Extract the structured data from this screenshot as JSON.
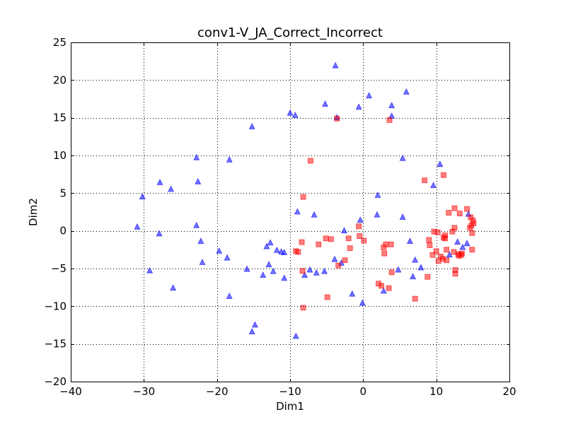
{
  "chart_data": {
    "type": "scatter",
    "title": "conv1-V_JA_Correct_Incorrect",
    "xlabel": "Dim1",
    "ylabel": "Dim2",
    "xlim": [
      -40,
      20
    ],
    "ylim": [
      -20,
      25
    ],
    "xticks": [
      -40,
      -30,
      -20,
      -10,
      0,
      10,
      20
    ],
    "yticks": [
      -20,
      -15,
      -10,
      -5,
      0,
      5,
      10,
      15,
      20,
      25
    ],
    "xtick_labels": [
      "−40",
      "−30",
      "−20",
      "−10",
      "0",
      "10",
      "20"
    ],
    "ytick_labels": [
      "−20",
      "−15",
      "−10",
      "−5",
      "0",
      "5",
      "10",
      "15",
      "20",
      "25"
    ],
    "grid": true,
    "series": [
      {
        "marker": "triangle",
        "color": "#0000ff",
        "points": [
          [
            -3.8,
            21.9
          ],
          [
            5.9,
            18.4
          ],
          [
            0.8,
            17.9
          ],
          [
            -5.2,
            16.8
          ],
          [
            3.9,
            16.6
          ],
          [
            -0.6,
            16.4
          ],
          [
            -10.0,
            15.6
          ],
          [
            -9.3,
            15.3
          ],
          [
            3.9,
            15.2
          ],
          [
            -3.6,
            15.0
          ],
          [
            -15.2,
            13.8
          ],
          [
            10.5,
            8.8
          ],
          [
            -22.8,
            9.7
          ],
          [
            -18.3,
            9.4
          ],
          [
            5.4,
            9.6
          ],
          [
            -27.8,
            6.4
          ],
          [
            -22.6,
            6.5
          ],
          [
            -26.3,
            5.5
          ],
          [
            -30.2,
            4.5
          ],
          [
            9.6,
            6.0
          ],
          [
            2.0,
            4.7
          ],
          [
            -9.0,
            2.5
          ],
          [
            -6.7,
            2.1
          ],
          [
            1.9,
            2.1
          ],
          [
            5.4,
            1.8
          ],
          [
            -0.4,
            1.4
          ],
          [
            -30.9,
            0.5
          ],
          [
            -22.8,
            0.7
          ],
          [
            -27.9,
            -0.4
          ],
          [
            -2.6,
            0.0
          ],
          [
            -22.2,
            -1.4
          ],
          [
            -12.7,
            -1.6
          ],
          [
            -13.2,
            -2.1
          ],
          [
            6.4,
            -1.4
          ],
          [
            -19.7,
            -2.7
          ],
          [
            -11.8,
            -2.6
          ],
          [
            -11.2,
            -2.8
          ],
          [
            -10.8,
            -2.9
          ],
          [
            -18.6,
            -3.6
          ],
          [
            -22.0,
            -4.2
          ],
          [
            -3.9,
            -3.8
          ],
          [
            -12.9,
            -4.5
          ],
          [
            -3.0,
            -4.3
          ],
          [
            7.1,
            -3.9
          ],
          [
            -15.9,
            -5.1
          ],
          [
            -12.3,
            -5.4
          ],
          [
            -29.2,
            -5.3
          ],
          [
            -7.3,
            -5.2
          ],
          [
            -6.4,
            -5.6
          ],
          [
            -5.3,
            -5.4
          ],
          [
            4.8,
            -5.2
          ],
          [
            7.9,
            -4.9
          ],
          [
            -13.7,
            -5.9
          ],
          [
            -8.0,
            -5.9
          ],
          [
            -10.8,
            -6.3
          ],
          [
            6.8,
            -6.1
          ],
          [
            -26.0,
            -7.6
          ],
          [
            -18.3,
            -8.7
          ],
          [
            2.8,
            -8.0
          ],
          [
            -1.5,
            -8.4
          ],
          [
            -0.1,
            -9.6
          ],
          [
            -14.8,
            -12.5
          ],
          [
            -15.2,
            -13.4
          ],
          [
            -9.2,
            -14.0
          ],
          [
            11.8,
            -3.2
          ],
          [
            14.2,
            -1.7
          ],
          [
            14.4,
            2.2
          ],
          [
            12.9,
            -1.5
          ],
          [
            13.6,
            -2.2
          ]
        ]
      },
      {
        "marker": "square",
        "color": "#ff0000",
        "points": [
          [
            -3.6,
            14.9
          ],
          [
            3.6,
            14.7
          ],
          [
            -7.2,
            9.3
          ],
          [
            11.0,
            7.4
          ],
          [
            8.4,
            6.7
          ],
          [
            -8.2,
            4.5
          ],
          [
            12.5,
            3.0
          ],
          [
            14.2,
            2.9
          ],
          [
            11.7,
            2.4
          ],
          [
            13.2,
            2.3
          ],
          [
            14.7,
            1.8
          ],
          [
            15.0,
            1.4
          ],
          [
            14.8,
            0.7
          ],
          [
            15.1,
            1.0
          ],
          [
            14.6,
            0.4
          ],
          [
            12.5,
            0.4
          ],
          [
            12.2,
            -0.1
          ],
          [
            -0.6,
            0.6
          ],
          [
            10.2,
            -0.2
          ],
          [
            9.7,
            -0.1
          ],
          [
            11.2,
            -0.6
          ],
          [
            11.0,
            -0.9
          ],
          [
            14.9,
            -0.3
          ],
          [
            -8.4,
            -1.5
          ],
          [
            -4.4,
            -1.1
          ],
          [
            -5.1,
            -1.0
          ],
          [
            -2.0,
            -1.0
          ],
          [
            -0.5,
            -0.7
          ],
          [
            0.1,
            -1.3
          ],
          [
            -6.1,
            -1.8
          ],
          [
            3.1,
            -1.8
          ],
          [
            3.8,
            -1.8
          ],
          [
            9.0,
            -1.2
          ],
          [
            9.1,
            -1.9
          ],
          [
            -8.9,
            -2.8
          ],
          [
            -1.8,
            -2.3
          ],
          [
            2.8,
            -2.2
          ],
          [
            -9.2,
            -2.7
          ],
          [
            9.5,
            -3.2
          ],
          [
            10.0,
            -2.7
          ],
          [
            11.4,
            -2.5
          ],
          [
            12.4,
            -2.8
          ],
          [
            13.0,
            -3.1
          ],
          [
            13.4,
            -3.2
          ],
          [
            14.9,
            -2.5
          ],
          [
            10.3,
            -4.0
          ],
          [
            10.9,
            -3.7
          ],
          [
            11.4,
            -3.9
          ],
          [
            2.9,
            -3.0
          ],
          [
            -2.5,
            -3.9
          ],
          [
            -3.4,
            -4.6
          ],
          [
            -8.3,
            -5.3
          ],
          [
            3.9,
            -5.5
          ],
          [
            12.6,
            -5.2
          ],
          [
            12.6,
            -5.7
          ],
          [
            8.8,
            -6.1
          ],
          [
            2.1,
            -7.0
          ],
          [
            2.5,
            -7.3
          ],
          [
            3.5,
            -7.6
          ],
          [
            7.1,
            -9.0
          ],
          [
            -4.9,
            -8.8
          ],
          [
            -8.2,
            -10.2
          ],
          [
            10.6,
            -3.4
          ],
          [
            11.2,
            -1.0
          ],
          [
            13.1,
            -3.3
          ],
          [
            13.5,
            -3.0
          ]
        ]
      }
    ]
  }
}
